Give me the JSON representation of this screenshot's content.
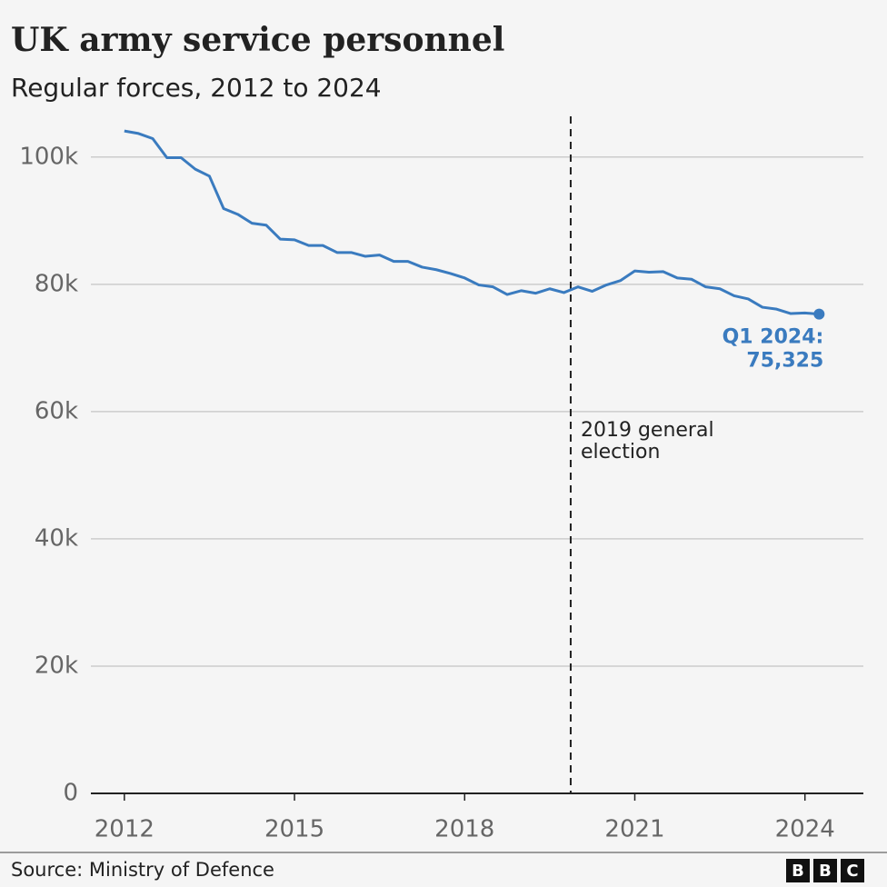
{
  "chart_data": {
    "type": "line",
    "title": "UK army service personnel",
    "subtitle": "Regular forces, 2012 to 2024",
    "x": [
      2012,
      2012.25,
      2012.5,
      2012.75,
      2013,
      2013.25,
      2013.5,
      2013.75,
      2014,
      2014.25,
      2014.5,
      2014.75,
      2015,
      2015.25,
      2015.5,
      2015.75,
      2016,
      2016.25,
      2016.5,
      2016.75,
      2017,
      2017.25,
      2017.5,
      2017.75,
      2018,
      2018.25,
      2018.5,
      2018.75,
      2019,
      2019.25,
      2019.5,
      2019.75,
      2020,
      2020.25,
      2020.5,
      2020.75,
      2021,
      2021.25,
      2021.5,
      2021.75,
      2022,
      2022.25,
      2022.5,
      2022.75,
      2023,
      2023.25,
      2023.5,
      2023.75,
      2024,
      2024.25
    ],
    "series": [
      {
        "name": "Regular forces",
        "color": "#3a7bbf",
        "values": [
          104100,
          103700,
          102900,
          99900,
          99900,
          98100,
          97000,
          91900,
          91000,
          89600,
          89300,
          87100,
          87000,
          86100,
          86100,
          85000,
          85000,
          84400,
          84600,
          83600,
          83600,
          82700,
          82300,
          81700,
          81000,
          79900,
          79600,
          78400,
          79000,
          78600,
          79300,
          78700,
          79600,
          78900,
          79900,
          80600,
          82100,
          81900,
          82000,
          81000,
          80800,
          79600,
          79300,
          78200,
          77700,
          76400,
          76100,
          75400,
          75500,
          75325
        ]
      }
    ],
    "xlim": [
      2011.41,
      2025.03
    ],
    "xticks": [
      2012,
      2015,
      2018,
      2021,
      2024
    ],
    "ylim": [
      0,
      106400
    ],
    "yticks": [
      0,
      {
        "value": 20000,
        "label": "20k"
      },
      {
        "value": 40000,
        "label": "40k"
      },
      {
        "value": 60000,
        "label": "60k"
      },
      {
        "value": 80000,
        "label": "80k"
      },
      {
        "value": 100000,
        "label": "100k"
      }
    ],
    "grid": true,
    "event": {
      "x": 2019.87,
      "label_lines": [
        "2019 general",
        "election"
      ]
    },
    "end_label": {
      "period": "Q1 2024:",
      "value_label": "75,325"
    }
  },
  "source": "Source: Ministry of Defence",
  "logo": [
    "B",
    "B",
    "C"
  ]
}
